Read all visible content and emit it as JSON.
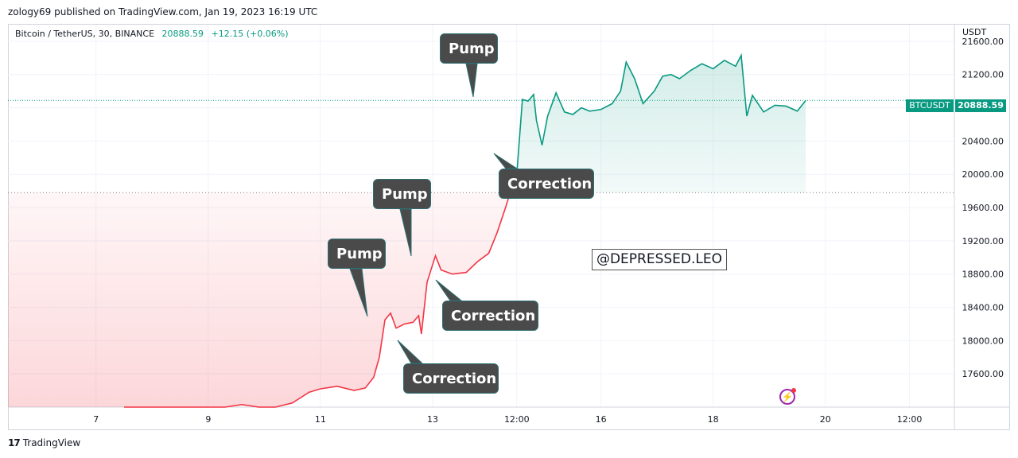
{
  "header": {
    "publisher": "zology69 published on TradingView.com, Jan 19, 2023 16:19 UTC"
  },
  "legend": {
    "symbol": "Bitcoin / TetherUS, 30, BINANCE",
    "last": "20888.59",
    "change": "+12.15 (+0.06%)"
  },
  "price_axis": {
    "currency": "USDT",
    "tag_symbol": "BTCUSDT",
    "tag_price": "20888.59"
  },
  "annotations": {
    "pump_top": "Pump",
    "pump_mid": "Pump",
    "pump_low": "Pump",
    "correction_top": "Correction",
    "correction_mid": "Correction",
    "correction_low": "Correction",
    "watermark": "@DEPRESSED.LEO"
  },
  "footer": {
    "brand": "TradingView",
    "logo": "17"
  },
  "colors": {
    "up": "#089981",
    "down": "#f23645",
    "grid": "#f0f3fa"
  },
  "chart_data": {
    "type": "area",
    "title": "",
    "ylim": [
      17200,
      21800
    ],
    "yticks": [
      17600,
      18000,
      18400,
      18800,
      19200,
      19600,
      20000,
      20400,
      20800,
      21200,
      21600
    ],
    "xticks": [
      {
        "label": "7",
        "x": 7
      },
      {
        "label": "9",
        "x": 9
      },
      {
        "label": "11",
        "x": 11
      },
      {
        "label": "13",
        "x": 13
      },
      {
        "label": "12:00",
        "x": 14.5
      },
      {
        "label": "16",
        "x": 16
      },
      {
        "label": "18",
        "x": 18
      },
      {
        "label": "20",
        "x": 20
      },
      {
        "label": "12:00",
        "x": 21.5
      }
    ],
    "xlim": [
      5.43,
      22.3
    ],
    "baseline": 19780,
    "last_price": 20888.59,
    "series": [
      {
        "values": [
          [
            7.5,
            16900
          ],
          [
            8.5,
            17000
          ],
          [
            9.0,
            17150
          ],
          [
            9.3,
            17180
          ],
          [
            9.6,
            17230
          ],
          [
            9.9,
            17120
          ],
          [
            10.2,
            17160
          ],
          [
            10.5,
            17250
          ],
          [
            10.8,
            17380
          ],
          [
            11.0,
            17420
          ],
          [
            11.3,
            17450
          ],
          [
            11.6,
            17400
          ],
          [
            11.8,
            17430
          ],
          [
            11.95,
            17560
          ],
          [
            12.05,
            17800
          ],
          [
            12.15,
            18250
          ],
          [
            12.25,
            18330
          ],
          [
            12.35,
            18150
          ],
          [
            12.5,
            18200
          ],
          [
            12.65,
            18220
          ],
          [
            12.75,
            18300
          ],
          [
            12.8,
            18080
          ],
          [
            12.9,
            18700
          ],
          [
            13.05,
            19020
          ],
          [
            13.15,
            18850
          ],
          [
            13.35,
            18800
          ],
          [
            13.6,
            18820
          ],
          [
            13.8,
            18950
          ],
          [
            14.0,
            19050
          ],
          [
            14.15,
            19300
          ],
          [
            14.3,
            19600
          ],
          [
            14.4,
            19820
          ],
          [
            14.5,
            20000
          ],
          [
            14.6,
            20900
          ],
          [
            14.7,
            20880
          ],
          [
            14.8,
            20960
          ],
          [
            14.85,
            20650
          ],
          [
            14.95,
            20350
          ],
          [
            15.05,
            20700
          ],
          [
            15.2,
            20980
          ],
          [
            15.35,
            20750
          ],
          [
            15.5,
            20720
          ],
          [
            15.65,
            20800
          ],
          [
            15.8,
            20760
          ],
          [
            16.0,
            20780
          ],
          [
            16.2,
            20850
          ],
          [
            16.35,
            21000
          ],
          [
            16.45,
            21350
          ],
          [
            16.6,
            21150
          ],
          [
            16.75,
            20850
          ],
          [
            16.95,
            21000
          ],
          [
            17.1,
            21180
          ],
          [
            17.25,
            21200
          ],
          [
            17.4,
            21150
          ],
          [
            17.6,
            21250
          ],
          [
            17.8,
            21330
          ],
          [
            18.0,
            21270
          ],
          [
            18.2,
            21370
          ],
          [
            18.4,
            21300
          ],
          [
            18.5,
            21430
          ],
          [
            18.6,
            20700
          ],
          [
            18.7,
            20950
          ],
          [
            18.9,
            20750
          ],
          [
            19.1,
            20830
          ],
          [
            19.3,
            20820
          ],
          [
            19.5,
            20760
          ],
          [
            19.65,
            20888.59
          ]
        ]
      }
    ]
  }
}
